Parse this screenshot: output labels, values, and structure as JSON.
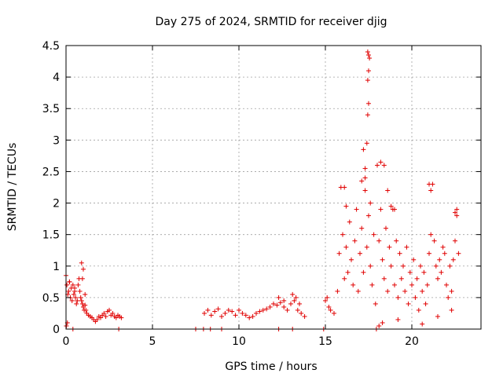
{
  "chart_data": {
    "type": "scatter",
    "title": "Day 275 of 2024, SRMTID for receiver djig",
    "xlabel": "GPS time / hours",
    "ylabel": "SRMTID / TECUs",
    "xlim": [
      0,
      24
    ],
    "ylim": [
      0,
      4.5
    ],
    "xticks": [
      0,
      5,
      10,
      15,
      20
    ],
    "yticks": [
      0,
      0.5,
      1,
      1.5,
      2,
      2.5,
      3,
      3.5,
      4,
      4.5
    ],
    "xtick_labels": [
      "0",
      "5",
      "10",
      "15",
      "20"
    ],
    "ytick_labels": [
      "0",
      "0.5",
      "1",
      "1.5",
      "2",
      "2.5",
      "3",
      "3.5",
      "4",
      "4.5"
    ],
    "grid": true,
    "marker": "+",
    "series": [
      {
        "name": "SRMTID",
        "color": "#e00000",
        "x": [
          0.0,
          0.05,
          0.1,
          0.15,
          0.2,
          0.25,
          0.3,
          0.35,
          0.4,
          0.45,
          0.5,
          0.55,
          0.6,
          0.65,
          0.7,
          0.75,
          0.8,
          0.85,
          0.9,
          0.95,
          1.0,
          1.05,
          1.1,
          1.15,
          1.2,
          1.3,
          1.4,
          1.5,
          1.6,
          1.7,
          1.8,
          1.9,
          2.0,
          2.1,
          2.2,
          2.3,
          2.4,
          2.5,
          2.6,
          2.7,
          2.8,
          2.9,
          3.0,
          3.1,
          3.2,
          0.2,
          0.5,
          0.9,
          1.0,
          0.95,
          0.02,
          0.08,
          1.1,
          8.0,
          8.2,
          8.4,
          8.6,
          8.8,
          9.0,
          9.2,
          9.4,
          9.6,
          9.8,
          10.0,
          10.2,
          10.4,
          10.6,
          10.8,
          11.0,
          11.2,
          11.4,
          11.6,
          11.8,
          12.0,
          12.2,
          12.4,
          12.6,
          12.8,
          13.0,
          13.2,
          13.4,
          13.6,
          13.8,
          12.3,
          12.6,
          13.1,
          13.3,
          13.5,
          15.0,
          15.1,
          15.2,
          15.3,
          15.5,
          15.7,
          15.8,
          15.9,
          16.0,
          16.1,
          16.2,
          16.3,
          16.4,
          16.5,
          16.6,
          16.7,
          16.8,
          16.9,
          17.0,
          17.1,
          17.2,
          17.3,
          17.4,
          17.5,
          17.6,
          17.7,
          17.8,
          17.9,
          18.0,
          18.1,
          18.2,
          18.3,
          18.4,
          18.5,
          18.6,
          18.7,
          18.8,
          18.9,
          19.0,
          19.1,
          19.2,
          19.3,
          19.4,
          19.5,
          19.6,
          19.7,
          19.8,
          19.9,
          20.0,
          20.1,
          20.2,
          20.3,
          20.4,
          20.5,
          20.6,
          20.7,
          20.8,
          20.9,
          21.0,
          21.1,
          21.2,
          21.3,
          21.4,
          21.5,
          21.6,
          21.7,
          21.8,
          21.9,
          22.0,
          22.1,
          22.2,
          22.3,
          22.4,
          22.5,
          22.6,
          22.7,
          17.45,
          17.5,
          17.55,
          17.5,
          17.45,
          17.5,
          17.45,
          17.4,
          17.3,
          17.2,
          17.1,
          18.2,
          18.4,
          18.6,
          18.8,
          19.0,
          21.0,
          21.1,
          22.6,
          22.5,
          16.1,
          16.2,
          17.3,
          17.6,
          18.1,
          18.3,
          19.2,
          20.6,
          21.5,
          22.3
        ],
        "y": [
          0.85,
          0.7,
          0.55,
          0.6,
          0.75,
          0.5,
          0.65,
          0.45,
          0.7,
          0.55,
          0.6,
          0.5,
          0.4,
          0.45,
          0.7,
          0.8,
          0.6,
          0.5,
          0.45,
          0.4,
          0.35,
          0.3,
          0.38,
          0.3,
          0.25,
          0.22,
          0.2,
          0.18,
          0.15,
          0.12,
          0.15,
          0.2,
          0.18,
          0.22,
          0.25,
          0.2,
          0.28,
          0.3,
          0.22,
          0.25,
          0.2,
          0.18,
          0.22,
          0.2,
          0.18,
          0.75,
          0.65,
          1.05,
          0.95,
          0.8,
          0.05,
          0.1,
          0.55,
          0.25,
          0.3,
          0.22,
          0.28,
          0.32,
          0.2,
          0.25,
          0.3,
          0.28,
          0.22,
          0.3,
          0.25,
          0.22,
          0.18,
          0.2,
          0.25,
          0.28,
          0.3,
          0.32,
          0.35,
          0.4,
          0.38,
          0.42,
          0.35,
          0.3,
          0.4,
          0.45,
          0.3,
          0.25,
          0.2,
          0.5,
          0.45,
          0.55,
          0.5,
          0.4,
          0.45,
          0.5,
          0.35,
          0.3,
          0.25,
          0.6,
          1.2,
          2.25,
          1.5,
          0.8,
          1.3,
          0.9,
          1.7,
          1.1,
          0.7,
          1.4,
          1.9,
          0.6,
          1.2,
          1.6,
          0.9,
          2.2,
          1.3,
          1.8,
          1.0,
          0.7,
          1.5,
          0.4,
          2.6,
          1.4,
          1.9,
          1.1,
          0.8,
          1.6,
          0.6,
          1.3,
          1.0,
          1.9,
          0.7,
          1.4,
          0.5,
          1.2,
          0.8,
          1.0,
          0.6,
          1.3,
          0.4,
          0.9,
          0.7,
          1.1,
          0.5,
          0.8,
          0.3,
          1.0,
          0.6,
          0.9,
          0.4,
          0.7,
          1.2,
          1.5,
          2.3,
          1.4,
          1.0,
          0.8,
          1.1,
          0.9,
          1.3,
          1.2,
          0.7,
          0.5,
          1.0,
          0.6,
          1.1,
          1.4,
          1.8,
          1.2,
          4.4,
          4.35,
          4.3,
          4.1,
          3.95,
          3.58,
          3.4,
          2.95,
          2.55,
          2.85,
          2.35,
          2.65,
          2.6,
          2.2,
          1.95,
          1.9,
          2.3,
          2.2,
          1.9,
          1.85,
          2.25,
          1.95,
          2.4,
          2.0,
          0.05,
          0.1,
          0.15,
          0.08,
          0.2,
          0.3
        ],
        "markers_at_zero_x": [
          0.4,
          3.05,
          7.5,
          7.95,
          8.35,
          9.0,
          12.3,
          13.1,
          14.9,
          17.95
        ]
      }
    ]
  }
}
